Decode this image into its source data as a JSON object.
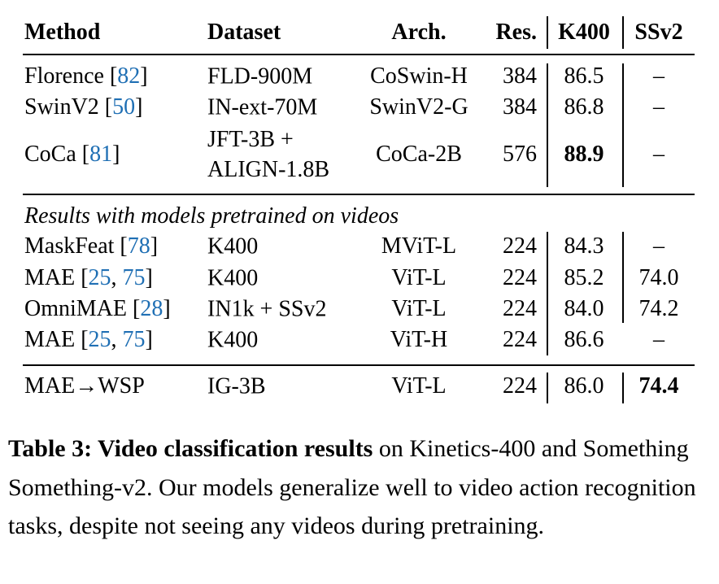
{
  "table": {
    "header": [
      "Method",
      "Dataset",
      "Arch.",
      "Res.",
      "K400",
      "SSv2"
    ],
    "groups": [
      {
        "rows": [
          {
            "method": [
              "Florence [",
              "82",
              "]"
            ],
            "dataset": [
              "FLD-900M"
            ],
            "arch": "CoSwin-H",
            "res": "384",
            "k400": "86.5",
            "ssv2": "–"
          },
          {
            "method": [
              "SwinV2 [",
              "50",
              "]"
            ],
            "dataset": [
              "IN-ext-70M"
            ],
            "arch": "SwinV2-G",
            "res": "384",
            "k400": "86.8",
            "ssv2": "–"
          },
          {
            "method": [
              "CoCa [",
              "81",
              "]"
            ],
            "dataset": [
              "JFT-3B +",
              "ALIGN-1.8B"
            ],
            "arch": "CoCa-2B",
            "res": "576",
            "k400": "88.9",
            "ssv2": "–",
            "bold": "k400"
          }
        ]
      },
      {
        "heading": "Results with models pretrained on videos",
        "rows": [
          {
            "method": [
              "MaskFeat [",
              "78",
              "]"
            ],
            "dataset": [
              "K400"
            ],
            "arch": "MViT-L",
            "res": "224",
            "k400": "84.3",
            "ssv2": "–"
          },
          {
            "method": [
              "MAE [",
              "25",
              ", ",
              "75",
              "]"
            ],
            "dataset": [
              "K400"
            ],
            "arch": "ViT-L",
            "res": "224",
            "k400": "85.2",
            "ssv2": "74.0"
          },
          {
            "method": [
              "OmniMAE [",
              "28",
              "]"
            ],
            "dataset": [
              "IN1k + SSv2"
            ],
            "arch": "ViT-L",
            "res": "224",
            "k400": "84.0",
            "ssv2": "74.2"
          },
          {
            "method": [
              "MAE [",
              "25",
              ", ",
              "75",
              "]"
            ],
            "dataset": [
              "K400"
            ],
            "arch": "ViT-H",
            "res": "224",
            "k400": "86.6",
            "ssv2": "–"
          }
        ]
      },
      {
        "rows": [
          {
            "method": [
              "MAE→WSP"
            ],
            "dataset": [
              "IG-3B"
            ],
            "arch": "ViT-L",
            "res": "224",
            "k400": "86.0",
            "ssv2": "74.4",
            "bold": "ssv2"
          }
        ]
      }
    ]
  },
  "caption": {
    "label": "Table 3: Video classification results",
    "text": " on Kinetics-400 and Something Something-v2. Our models generalize well to video action recognition tasks, despite not seeing any videos during pretraining."
  }
}
